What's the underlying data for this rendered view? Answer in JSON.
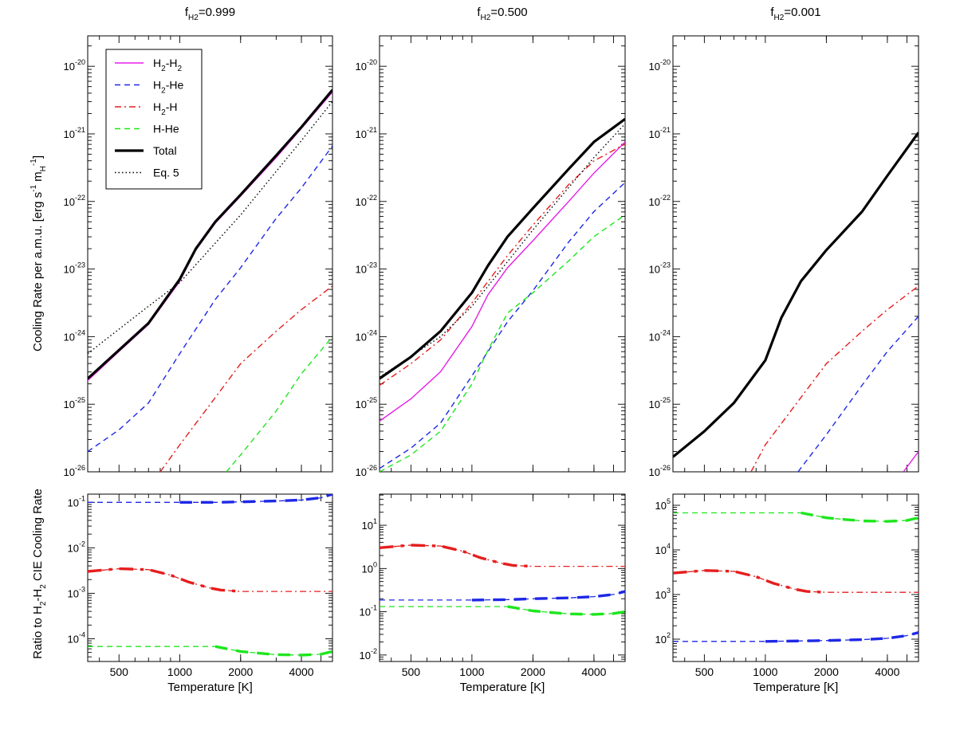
{
  "figure": {
    "ylabel_top": "Cooling Rate per a.m.u. [erg s",
    "ylabel_top_exp1": "-1",
    "ylabel_top_mid": " m",
    "ylabel_top_sub": "H",
    "ylabel_top_exp2": "-1",
    "ylabel_top_end": "]",
    "ylabel_bottom_pre": "Ratio to H",
    "ylabel_bottom_sub1": "2",
    "ylabel_bottom_mid": "-H",
    "ylabel_bottom_sub2": "2",
    "ylabel_bottom_post": " CIE Cooling Rate",
    "xlabel": "Temperature [K]",
    "title_prefix": "f",
    "title_sub": "H2",
    "columns": [
      "=0.999",
      "=0.500",
      "=0.001"
    ],
    "x_ticks": [
      "500",
      "1000",
      "2000",
      "4000"
    ],
    "top_y_ticks": [
      "-20",
      "-21",
      "-22",
      "-23",
      "-24",
      "-25",
      "-26"
    ],
    "tick_base": "10"
  },
  "legend": {
    "items": [
      {
        "label_main": "H",
        "label_sub": "2",
        "label_rest": "-H",
        "label_sub2": "2",
        "color": "#e61ee6",
        "style": "solid",
        "width": 1.4
      },
      {
        "label_main": "H",
        "label_sub": "2",
        "label_rest": "-He",
        "label_sub2": "",
        "color": "#1e28e6",
        "style": "dash",
        "width": 1.4
      },
      {
        "label_main": "H",
        "label_sub": "2",
        "label_rest": "-H",
        "label_sub2": "",
        "color": "#e61e1e",
        "style": "dashdot",
        "width": 1.4
      },
      {
        "label_main": "H-He",
        "label_sub": "",
        "label_rest": "",
        "label_sub2": "",
        "color": "#1ee61e",
        "style": "dash",
        "width": 1.4
      },
      {
        "label_main": "Total",
        "label_sub": "",
        "label_rest": "",
        "label_sub2": "",
        "color": "#000000",
        "style": "solid",
        "width": 3.2
      },
      {
        "label_main": "Eq. 5",
        "label_sub": "",
        "label_rest": "",
        "label_sub2": "",
        "color": "#000000",
        "style": "dot",
        "width": 1.4
      }
    ]
  },
  "chart_data": [
    {
      "type": "line",
      "panel": "top",
      "column": 0,
      "title": "f_H2=0.999",
      "xscale": "log",
      "yscale": "log",
      "xlim": [
        350,
        5700
      ],
      "ylim": [
        -26,
        -19.55
      ],
      "series": [
        {
          "name": "H2-H2",
          "color": "#e61ee6",
          "style": "solid",
          "width": 1.4,
          "x": [
            350,
            500,
            700,
            1000,
            1200,
            1500,
            2000,
            3000,
            4000,
            5700
          ],
          "y": [
            -24.65,
            -24.22,
            -23.82,
            -23.18,
            -22.72,
            -22.32,
            -21.92,
            -21.35,
            -20.92,
            -20.38
          ]
        },
        {
          "name": "H2-He",
          "color": "#1e28e6",
          "style": "dash",
          "width": 1.4,
          "x": [
            350,
            500,
            700,
            1000,
            1500,
            2000,
            3000,
            4000,
            5700
          ],
          "y": [
            -25.7,
            -25.38,
            -24.98,
            -24.25,
            -23.45,
            -22.98,
            -22.25,
            -21.8,
            -21.18
          ]
        },
        {
          "name": "H2-H",
          "color": "#e61e1e",
          "style": "dashdot",
          "width": 1.4,
          "x": [
            800,
            1000,
            1500,
            2000,
            3000,
            4000,
            5700
          ],
          "y": [
            -26,
            -25.6,
            -24.9,
            -24.4,
            -23.92,
            -23.6,
            -23.25
          ]
        },
        {
          "name": "H-He",
          "color": "#1ee61e",
          "style": "dash",
          "width": 1.4,
          "x": [
            1700,
            2000,
            3000,
            4000,
            5700
          ],
          "y": [
            -26,
            -25.75,
            -25.1,
            -24.55,
            -24.0
          ]
        },
        {
          "name": "Total",
          "color": "#000000",
          "style": "solid",
          "width": 3.2,
          "x": [
            350,
            500,
            700,
            1000,
            1200,
            1500,
            2000,
            3000,
            4000,
            5700
          ],
          "y": [
            -24.62,
            -24.2,
            -23.8,
            -23.15,
            -22.7,
            -22.3,
            -21.9,
            -21.32,
            -20.9,
            -20.35
          ]
        },
        {
          "name": "Eq. 5",
          "color": "#000000",
          "style": "dot",
          "width": 1.4,
          "x": [
            350,
            700,
            1000,
            2000,
            4000,
            5700
          ],
          "y": [
            -24.25,
            -23.55,
            -23.2,
            -22.2,
            -21.1,
            -20.52
          ]
        }
      ]
    },
    {
      "type": "line",
      "panel": "top",
      "column": 1,
      "title": "f_H2=0.500",
      "xscale": "log",
      "yscale": "log",
      "xlim": [
        350,
        5700
      ],
      "ylim": [
        -26,
        -19.55
      ],
      "series": [
        {
          "name": "H2-H2",
          "color": "#e61ee6",
          "style": "solid",
          "width": 1.4,
          "x": [
            350,
            500,
            700,
            1000,
            1200,
            1500,
            2000,
            3000,
            4000,
            5700
          ],
          "y": [
            -25.25,
            -24.92,
            -24.52,
            -23.85,
            -23.38,
            -22.98,
            -22.58,
            -22.0,
            -21.58,
            -21.12
          ]
        },
        {
          "name": "H2-He",
          "color": "#1e28e6",
          "style": "dash",
          "width": 1.4,
          "x": [
            350,
            500,
            700,
            1000,
            1500,
            2000,
            3000,
            4000,
            5700
          ],
          "y": [
            -25.95,
            -25.65,
            -25.28,
            -24.58,
            -23.78,
            -23.32,
            -22.6,
            -22.15,
            -21.72
          ]
        },
        {
          "name": "H2-H",
          "color": "#e61e1e",
          "style": "dashdot",
          "width": 1.4,
          "x": [
            350,
            500,
            700,
            1000,
            1500,
            2000,
            3000,
            4000,
            5700
          ],
          "y": [
            -24.72,
            -24.4,
            -24.05,
            -23.5,
            -22.8,
            -22.35,
            -21.75,
            -21.4,
            -21.15
          ]
        },
        {
          "name": "H-He",
          "color": "#1ee61e",
          "style": "dash",
          "width": 1.4,
          "x": [
            350,
            500,
            700,
            1000,
            1200,
            1500,
            2000,
            3000,
            4000,
            5700
          ],
          "y": [
            -26,
            -25.75,
            -25.4,
            -24.7,
            -24.2,
            -23.65,
            -23.35,
            -22.88,
            -22.52,
            -22.2
          ]
        },
        {
          "name": "Total",
          "color": "#000000",
          "style": "solid",
          "width": 3.2,
          "x": [
            350,
            500,
            700,
            1000,
            1200,
            1500,
            2000,
            3000,
            4000,
            5700
          ],
          "y": [
            -24.62,
            -24.3,
            -23.92,
            -23.35,
            -22.95,
            -22.52,
            -22.1,
            -21.52,
            -21.12,
            -20.78
          ]
        },
        {
          "name": "Eq. 5",
          "color": "#000000",
          "style": "dot",
          "width": 1.4,
          "x": [
            350,
            700,
            1000,
            2000,
            4000,
            5700
          ],
          "y": [
            -24.6,
            -24.0,
            -23.55,
            -22.42,
            -21.35,
            -20.85
          ]
        }
      ]
    },
    {
      "type": "line",
      "panel": "top",
      "column": 2,
      "title": "f_H2=0.001",
      "xscale": "log",
      "yscale": "log",
      "xlim": [
        350,
        5700
      ],
      "ylim": [
        -26,
        -19.55
      ],
      "series": [
        {
          "name": "H2-H2",
          "color": "#e61ee6",
          "style": "solid",
          "width": 1.4,
          "x": [
            4800,
            5700
          ],
          "y": [
            -26,
            -25.7
          ]
        },
        {
          "name": "H2-He",
          "color": "#1e28e6",
          "style": "dash",
          "width": 1.4,
          "x": [
            1450,
            2000,
            3000,
            4000,
            5700
          ],
          "y": [
            -26,
            -25.45,
            -24.72,
            -24.22,
            -23.7
          ]
        },
        {
          "name": "H2-H",
          "color": "#e61e1e",
          "style": "dashdot",
          "width": 1.4,
          "x": [
            850,
            1000,
            1500,
            2000,
            3000,
            4000,
            5700
          ],
          "y": [
            -26,
            -25.6,
            -24.9,
            -24.4,
            -23.92,
            -23.6,
            -23.25
          ]
        },
        {
          "name": "Total",
          "color": "#000000",
          "style": "solid",
          "width": 3.2,
          "x": [
            350,
            500,
            700,
            1000,
            1200,
            1500,
            2000,
            3000,
            4000,
            5700
          ],
          "y": [
            -25.78,
            -25.4,
            -24.98,
            -24.35,
            -23.72,
            -23.18,
            -22.72,
            -22.15,
            -21.62,
            -20.98
          ]
        }
      ]
    },
    {
      "type": "line",
      "panel": "bottom",
      "column": 0,
      "xscale": "log",
      "yscale": "log",
      "xlim": [
        350,
        5700
      ],
      "ylim": [
        -4.5,
        -0.82
      ],
      "y_ticks": [
        "-1",
        "-2",
        "-3",
        "-4"
      ],
      "series": [
        {
          "name": "H2-He ratio",
          "color": "#1e28e6",
          "style": "dash",
          "x": [
            350,
            700,
            1000,
            1500,
            2000,
            3000,
            4000,
            5000,
            5700
          ],
          "y": [
            -1.0,
            -1.0,
            -1.0,
            -1.0,
            -0.99,
            -0.97,
            -0.95,
            -0.9,
            -0.82
          ],
          "wide_from": 1000
        },
        {
          "name": "H2-H ratio",
          "color": "#e61e1e",
          "style": "dashdot",
          "x": [
            350,
            500,
            700,
            900,
            1100,
            1400,
            1600,
            2000,
            3000,
            4000,
            5700
          ],
          "y": [
            -2.52,
            -2.46,
            -2.48,
            -2.6,
            -2.75,
            -2.88,
            -2.93,
            -2.96,
            -2.96,
            -2.96,
            -2.96
          ],
          "wide_from": 350,
          "wide_to": 2300
        },
        {
          "name": "H-He ratio",
          "color": "#1ee61e",
          "style": "dash",
          "x": [
            350,
            1000,
            1500,
            2000,
            2500,
            3000,
            4000,
            5000,
            5700
          ],
          "y": [
            -4.17,
            -4.17,
            -4.17,
            -4.28,
            -4.32,
            -4.35,
            -4.36,
            -4.34,
            -4.28
          ],
          "wide_from": 1500
        }
      ]
    },
    {
      "type": "line",
      "panel": "bottom",
      "column": 1,
      "xscale": "log",
      "yscale": "log",
      "xlim": [
        350,
        5700
      ],
      "ylim": [
        -2.15,
        1.72
      ],
      "y_ticks": [
        "1",
        "0",
        "-1",
        "-2"
      ],
      "series": [
        {
          "name": "H2-H ratio",
          "color": "#e61e1e",
          "style": "dashdot",
          "x": [
            350,
            500,
            700,
            900,
            1100,
            1400,
            1600,
            2000,
            3000,
            4000,
            5700
          ],
          "y": [
            0.48,
            0.54,
            0.52,
            0.4,
            0.25,
            0.12,
            0.07,
            0.05,
            0.05,
            0.05,
            0.05
          ],
          "wide_from": 350,
          "wide_to": 2300
        },
        {
          "name": "H2-He ratio",
          "color": "#1e28e6",
          "style": "dash",
          "x": [
            350,
            700,
            1000,
            1500,
            2000,
            3000,
            4000,
            5000,
            5700
          ],
          "y": [
            -0.73,
            -0.73,
            -0.73,
            -0.72,
            -0.7,
            -0.68,
            -0.65,
            -0.6,
            -0.53
          ],
          "wide_from": 1000
        },
        {
          "name": "H-He ratio",
          "color": "#1ee61e",
          "style": "dash",
          "x": [
            350,
            1000,
            1500,
            2000,
            2500,
            3000,
            4000,
            5000,
            5700
          ],
          "y": [
            -0.88,
            -0.88,
            -0.88,
            -0.98,
            -1.02,
            -1.05,
            -1.06,
            -1.04,
            -1.0
          ],
          "wide_from": 1500
        }
      ]
    },
    {
      "type": "line",
      "panel": "bottom",
      "column": 2,
      "xscale": "log",
      "yscale": "log",
      "xlim": [
        350,
        5700
      ],
      "ylim": [
        1.5,
        5.25
      ],
      "y_ticks": [
        "5",
        "4",
        "3",
        "2"
      ],
      "series": [
        {
          "name": "H-He ratio",
          "color": "#1ee61e",
          "style": "dash",
          "x": [
            350,
            1000,
            1500,
            2000,
            2500,
            3000,
            4000,
            5000,
            5700
          ],
          "y": [
            4.83,
            4.83,
            4.83,
            4.72,
            4.68,
            4.65,
            4.64,
            4.66,
            4.72
          ],
          "wide_from": 1500
        },
        {
          "name": "H2-H ratio",
          "color": "#e61e1e",
          "style": "dashdot",
          "x": [
            350,
            500,
            700,
            900,
            1100,
            1400,
            1600,
            2000,
            3000,
            4000,
            5700
          ],
          "y": [
            3.48,
            3.54,
            3.52,
            3.4,
            3.25,
            3.12,
            3.07,
            3.05,
            3.05,
            3.05,
            3.05
          ],
          "wide_from": 350,
          "wide_to": 2300
        },
        {
          "name": "H2-He ratio",
          "color": "#1e28e6",
          "style": "dash",
          "x": [
            350,
            700,
            1000,
            1500,
            2000,
            3000,
            4000,
            5000,
            5700
          ],
          "y": [
            1.95,
            1.95,
            1.95,
            1.96,
            1.97,
            1.99,
            2.02,
            2.08,
            2.15
          ],
          "wide_from": 1000
        }
      ]
    }
  ]
}
